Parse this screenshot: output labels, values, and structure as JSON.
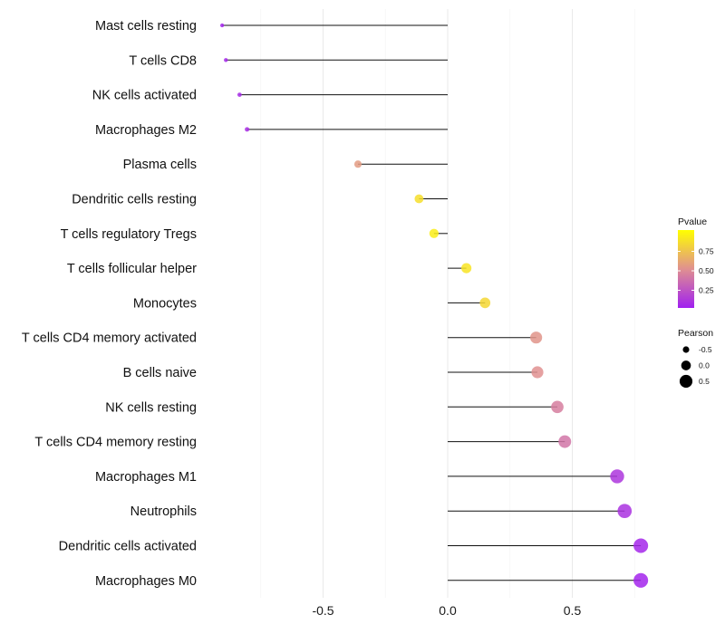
{
  "chart_data": {
    "type": "lollipop",
    "title": "",
    "xlabel": "",
    "ylabel": "",
    "xlim": [
      -0.92,
      0.92
    ],
    "xticks": [
      -0.5,
      0.0,
      0.5
    ],
    "xtick_labels": [
      "-0.5",
      "0.0",
      "0.5"
    ],
    "grid": true,
    "categories": [
      "Mast cells resting",
      "T cells CD8",
      "NK cells activated",
      "Macrophages M2",
      "Plasma cells",
      "Dendritic cells resting",
      "T cells regulatory  Tregs",
      "T cells follicular helper",
      "Monocytes",
      "T cells CD4 memory activated",
      "B cells naive",
      "NK cells resting",
      "T cells CD4 memory resting",
      "Macrophages M1",
      "Neutrophils",
      "Dendritic cells activated",
      "Macrophages M0"
    ],
    "pearson": [
      -0.905,
      -0.89,
      -0.835,
      -0.805,
      -0.36,
      -0.115,
      -0.055,
      0.075,
      0.15,
      0.355,
      0.36,
      0.44,
      0.47,
      0.68,
      0.71,
      0.775,
      0.775
    ],
    "pvalue": [
      0.02,
      0.03,
      0.05,
      0.06,
      0.55,
      0.85,
      0.92,
      0.88,
      0.82,
      0.52,
      0.5,
      0.42,
      0.38,
      0.1,
      0.08,
      0.03,
      0.02
    ],
    "legend": {
      "position": "right",
      "color": {
        "title": "Pvalue",
        "ticks": [
          0.75,
          0.5,
          0.25
        ],
        "tick_labels": [
          "0.75",
          "0.50",
          "0.25"
        ],
        "low_color": "#a020f0",
        "high_color": "#ffff00"
      },
      "size": {
        "title": "Pearson",
        "values": [
          -0.5,
          0.0,
          0.5
        ],
        "labels": [
          "-0.5",
          "0.0",
          "0.5"
        ]
      }
    }
  }
}
